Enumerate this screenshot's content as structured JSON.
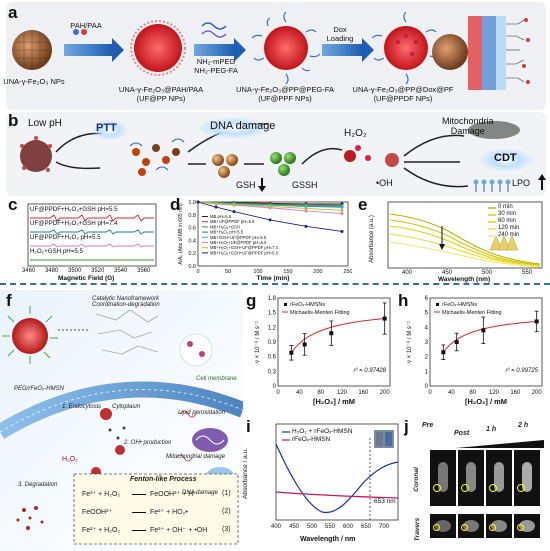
{
  "panels": {
    "a": "a",
    "b": "b",
    "c": "c",
    "d": "d",
    "e": "e",
    "f": "f",
    "g": "g",
    "h": "h",
    "i": "i",
    "j": "j"
  },
  "panel_a": {
    "steps": [
      "PAH/PAA",
      "NH₂-mPEG\nNH₂-PEG-FA",
      "Dox\nLoading"
    ],
    "labels": [
      "UNA-γ-Fe₂O₃ NPs",
      "UNA-γ-Fe₂O₃@PAH/PAA\n(UF@PP NPs)",
      "UNA-γ-Fe₂O₃@PP@PEG-FA\n(UF@PPF NPs)",
      "UNA-γ-Fe₂O₃@PP@Dox@PF\n(UF@PPDF NPs)"
    ]
  },
  "panel_b": {
    "low_ph": "Low pH",
    "ptt": "PTT",
    "dna": "DNA damage",
    "h2o2": "H₂O₂",
    "mito": "Mitochondria\nDamage",
    "cdt": "CDT",
    "gsh": "GSH",
    "gssh": "GSSH",
    "oh": "•OH",
    "lpo": "LPO"
  },
  "panel_c": {
    "traces": [
      "UF@PPDF+H₂O₂+GSH pH=5.5",
      "UF@PPDF+H₂O₂+GSH pH=7.4",
      "UF@PPDF+H₂O₂ pH=5.5",
      "H₂O₂+GSH pH=5.5"
    ],
    "xticks": [
      "3460",
      "3480",
      "3500",
      "3520",
      "3540",
      "3560"
    ],
    "xlabel": "Magnetic Field (G)"
  },
  "panel_e": {
    "legend": [
      "0 min",
      "30 min",
      "60 min",
      "120 min",
      "240 min"
    ],
    "xlabel": "Wavelength (nm)",
    "ylabel": "Absorbance (a.u.)",
    "xticks": [
      "400",
      "450",
      "500",
      "550"
    ]
  },
  "panel_f": {
    "top_left": "Catalytic Nanoframework\nCoordination-degradation",
    "hmsn": "PEG/rFeOₓ-HMSN",
    "cell_membrane": "Cell membrane",
    "endocytosis": "1. Endocytosis",
    "cytoplasm": "Cytoplasm",
    "oh_prod": "2. OH• production",
    "lipid": "Lipid peroxidation",
    "mito": "Mitochondrial damage",
    "dna": "DNA damage",
    "degradation": "3. Degradation",
    "h2o2": "H₂O₂",
    "fenton": "Fenton-like Process",
    "reactions": [
      {
        "lhs": "Fe³⁺ + H₂O₂",
        "rhs": "FeOOH²⁺ + H⁺",
        "n": "(1)"
      },
      {
        "lhs": "FeOOH²⁺",
        "rhs": "Fe²⁺ + HO₂•",
        "n": "(2)"
      },
      {
        "lhs": "Fe²⁺ + H₂O₂",
        "rhs": "Fe³⁺ + OH⁻ + •OH",
        "n": "(3)"
      }
    ]
  },
  "panel_i": {
    "legend": [
      "H₂O₂ + rFeOₓ-HMSN",
      "rFeOₓ-HMSN"
    ],
    "annot": "653 nm",
    "xlabel": "Wavelength / nm",
    "ylabel": "Absorbance / a.u."
  },
  "panel_j": {
    "pre": "Pre",
    "post": "Post",
    "t1": "1 h",
    "t2": "2 h",
    "coronal": "Coronal",
    "travers": "Travers"
  },
  "chart_data": [
    {
      "id": "d",
      "type": "line",
      "xlabel": "Time (min)",
      "ylabel": "A/A₀ (Abs of MB in 665 nm)",
      "xlim": [
        0,
        250
      ],
      "ylim": [
        0.0,
        1.0
      ],
      "xticks": [
        0,
        50,
        100,
        150,
        200,
        250
      ],
      "yticks": [
        0.0,
        0.2,
        0.4,
        0.6,
        0.8,
        1.0
      ],
      "x": [
        0,
        30,
        60,
        120,
        180,
        240
      ],
      "series": [
        {
          "name": "MB pH=5.5",
          "color": "#222222",
          "values": [
            1.0,
            0.99,
            0.99,
            0.98,
            0.97,
            0.97
          ]
        },
        {
          "name": "MB+UF@PPDF pH=5.5",
          "color": "#d62728",
          "values": [
            1.0,
            0.99,
            0.98,
            0.97,
            0.96,
            0.95
          ]
        },
        {
          "name": "MB+H₂O₂+GSH",
          "color": "#2ca02c",
          "values": [
            1.0,
            0.99,
            0.98,
            0.96,
            0.95,
            0.94
          ]
        },
        {
          "name": "MB+H₂O₂ pH=5.5",
          "color": "#1f77b4",
          "values": [
            1.0,
            0.98,
            0.97,
            0.95,
            0.93,
            0.92
          ]
        },
        {
          "name": "MB+GSH+UF@PPDF pH=5.5",
          "color": "#17becf",
          "values": [
            1.0,
            0.99,
            0.97,
            0.95,
            0.94,
            0.93
          ]
        },
        {
          "name": "MB+H₂O₂+UF@PPDF pH=5.5",
          "color": "#e377c2",
          "values": [
            1.0,
            0.97,
            0.95,
            0.91,
            0.86,
            0.82
          ]
        },
        {
          "name": "MB+H₂O₂+GSH+UF@PPDF pH=7.4",
          "color": "#bcbd22",
          "values": [
            1.0,
            0.98,
            0.96,
            0.93,
            0.9,
            0.87
          ]
        },
        {
          "name": "MB+H₂O₂+GSH+UF@PPDF pH=5.5",
          "color": "#1a237e",
          "values": [
            1.0,
            0.92,
            0.85,
            0.72,
            0.62,
            0.54
          ]
        }
      ]
    },
    {
      "id": "g",
      "type": "scatter",
      "legend": [
        "rFeOₓ-HMSNs",
        "Michaelis-Menten Fitting"
      ],
      "xlabel": "[H₂O₂] / mM",
      "ylabel": "v × 10⁻⁸ / M s⁻¹",
      "xlim": [
        0,
        210
      ],
      "ylim": [
        0.0,
        1.8
      ],
      "xticks": [
        0,
        40,
        80,
        120,
        160,
        200
      ],
      "yticks": [
        0.0,
        0.3,
        0.6,
        0.9,
        1.2,
        1.5,
        1.8
      ],
      "x": [
        25,
        50,
        100,
        200
      ],
      "values": [
        0.68,
        0.85,
        1.08,
        1.38
      ],
      "errors": [
        0.15,
        0.22,
        0.25,
        0.32
      ],
      "r2": "r² = 0.97428"
    },
    {
      "id": "h",
      "type": "scatter",
      "legend": [
        "rFeOₓ-HMSNs",
        "Michaelis-Menten Fitting"
      ],
      "xlabel": "[H₂O₂] / mM",
      "ylabel": "v × 10⁻⁸ / M s⁻¹",
      "xlim": [
        0,
        210
      ],
      "ylim": [
        0,
        6
      ],
      "xticks": [
        0,
        40,
        80,
        120,
        160,
        200
      ],
      "yticks": [
        0,
        1,
        2,
        3,
        4,
        5,
        6
      ],
      "x": [
        25,
        50,
        100,
        200
      ],
      "values": [
        2.3,
        3.0,
        3.8,
        4.4
      ],
      "errors": [
        0.5,
        0.6,
        0.9,
        0.7
      ],
      "r2": "r² = 0.99725"
    }
  ]
}
